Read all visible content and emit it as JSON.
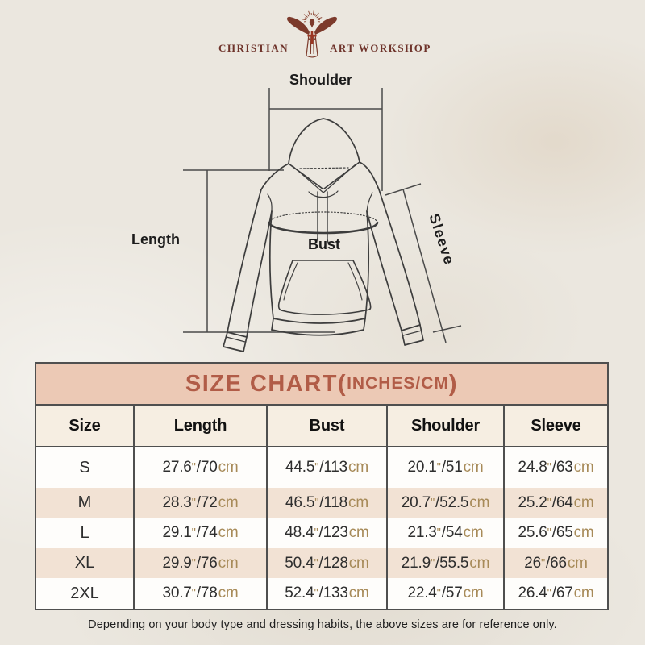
{
  "logo": {
    "brand_left": "CHRISTIAN",
    "brand_right": "ART WORKSHOP",
    "figure_icon": "jesus-rays-cross-icon"
  },
  "diagram": {
    "shoulder_label": "Shoulder",
    "length_label": "Length",
    "bust_label": "Bust",
    "sleeve_label": "Sleeve"
  },
  "size_chart": {
    "title_main": "SIZE CHART(",
    "title_unit": "INCHES/CM",
    "title_close": ")",
    "columns": [
      "Size",
      "Length",
      "Bust",
      "Shoulder",
      "Sleeve"
    ],
    "units": {
      "inch_mark": "\"",
      "separator": "/",
      "cm_label": "cm"
    },
    "rows": [
      {
        "size": "S",
        "measures": [
          {
            "in": "27.6",
            "cm": "70"
          },
          {
            "in": "44.5",
            "cm": "113"
          },
          {
            "in": "20.1",
            "cm": "51"
          },
          {
            "in": "24.8",
            "cm": "63"
          }
        ]
      },
      {
        "size": "M",
        "measures": [
          {
            "in": "28.3",
            "cm": "72"
          },
          {
            "in": "46.5",
            "cm": "118"
          },
          {
            "in": "20.7",
            "cm": "52.5"
          },
          {
            "in": "25.2",
            "cm": "64"
          }
        ]
      },
      {
        "size": "L",
        "measures": [
          {
            "in": "29.1",
            "cm": "74"
          },
          {
            "in": "48.4",
            "cm": "123"
          },
          {
            "in": "21.3",
            "cm": "54"
          },
          {
            "in": "25.6",
            "cm": "65"
          }
        ]
      },
      {
        "size": "XL",
        "measures": [
          {
            "in": "29.9",
            "cm": "76"
          },
          {
            "in": "50.4",
            "cm": "128"
          },
          {
            "in": "21.9",
            "cm": "55.5"
          },
          {
            "in": "26",
            "cm": "66"
          }
        ]
      },
      {
        "size": "2XL",
        "measures": [
          {
            "in": "30.7",
            "cm": "78"
          },
          {
            "in": "52.4",
            "cm": "133"
          },
          {
            "in": "22.4",
            "cm": "57"
          },
          {
            "in": "26.4",
            "cm": "67"
          }
        ]
      }
    ]
  },
  "footer": {
    "note": "Depending on your body type and dressing habits, the above sizes are for reference only."
  },
  "colors": {
    "accent_maroon": "#6e332a",
    "title_text": "#b15c47",
    "title_bg": "#ecc9b5",
    "header_row_bg": "#f6eee2",
    "row_stripe": "#f2e2d4",
    "unit_tan": "#a78a58",
    "cross_red": "#9c3723",
    "line_dark": "#3d3d3d"
  }
}
